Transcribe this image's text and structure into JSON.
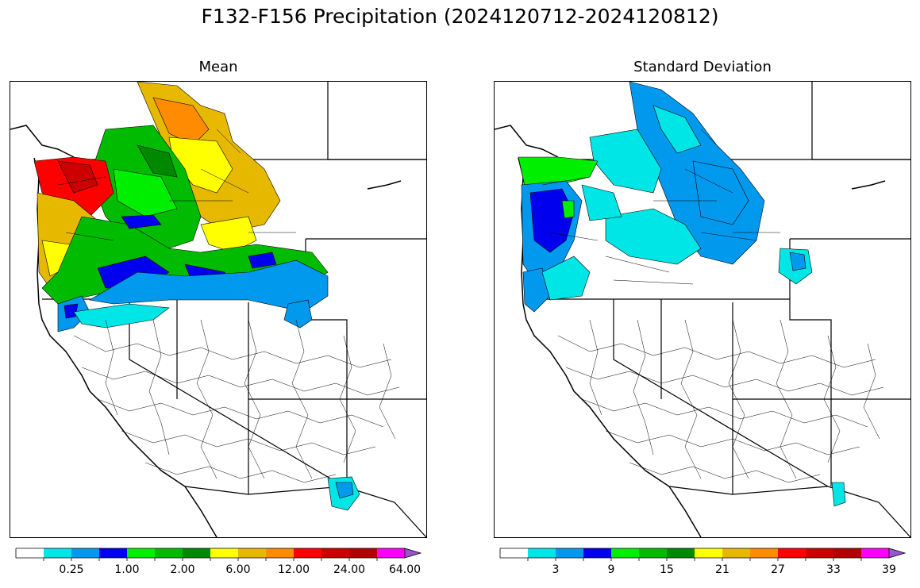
{
  "title": "F132-F156 Precipitation (2024120712-2024120812)",
  "panels": [
    {
      "id": "mean",
      "title": "Mean",
      "colorbar": {
        "colors": [
          "#ffffff",
          "#00e5e5",
          "#0099ee",
          "#0000ee",
          "#00ee00",
          "#00bb00",
          "#008800",
          "#ffff00",
          "#e6b800",
          "#ff8c00",
          "#ff0000",
          "#cc0000",
          "#b30000",
          "#ff00ff",
          "#9955cc"
        ],
        "tick_labels": [
          "0.25",
          "1.00",
          "2.00",
          "6.00",
          "12.00",
          "24.00",
          "64.00"
        ],
        "extend": "max"
      }
    },
    {
      "id": "std",
      "title": "Standard Deviation",
      "colorbar": {
        "colors": [
          "#ffffff",
          "#00e5e5",
          "#0099ee",
          "#0000ee",
          "#00ee00",
          "#00bb00",
          "#008800",
          "#ffff00",
          "#e6b800",
          "#ff8c00",
          "#ff0000",
          "#cc0000",
          "#b30000",
          "#ff00ff",
          "#9955cc"
        ],
        "tick_labels": [
          "3",
          "9",
          "15",
          "21",
          "27",
          "33",
          "39"
        ],
        "extend": "max"
      }
    }
  ]
}
